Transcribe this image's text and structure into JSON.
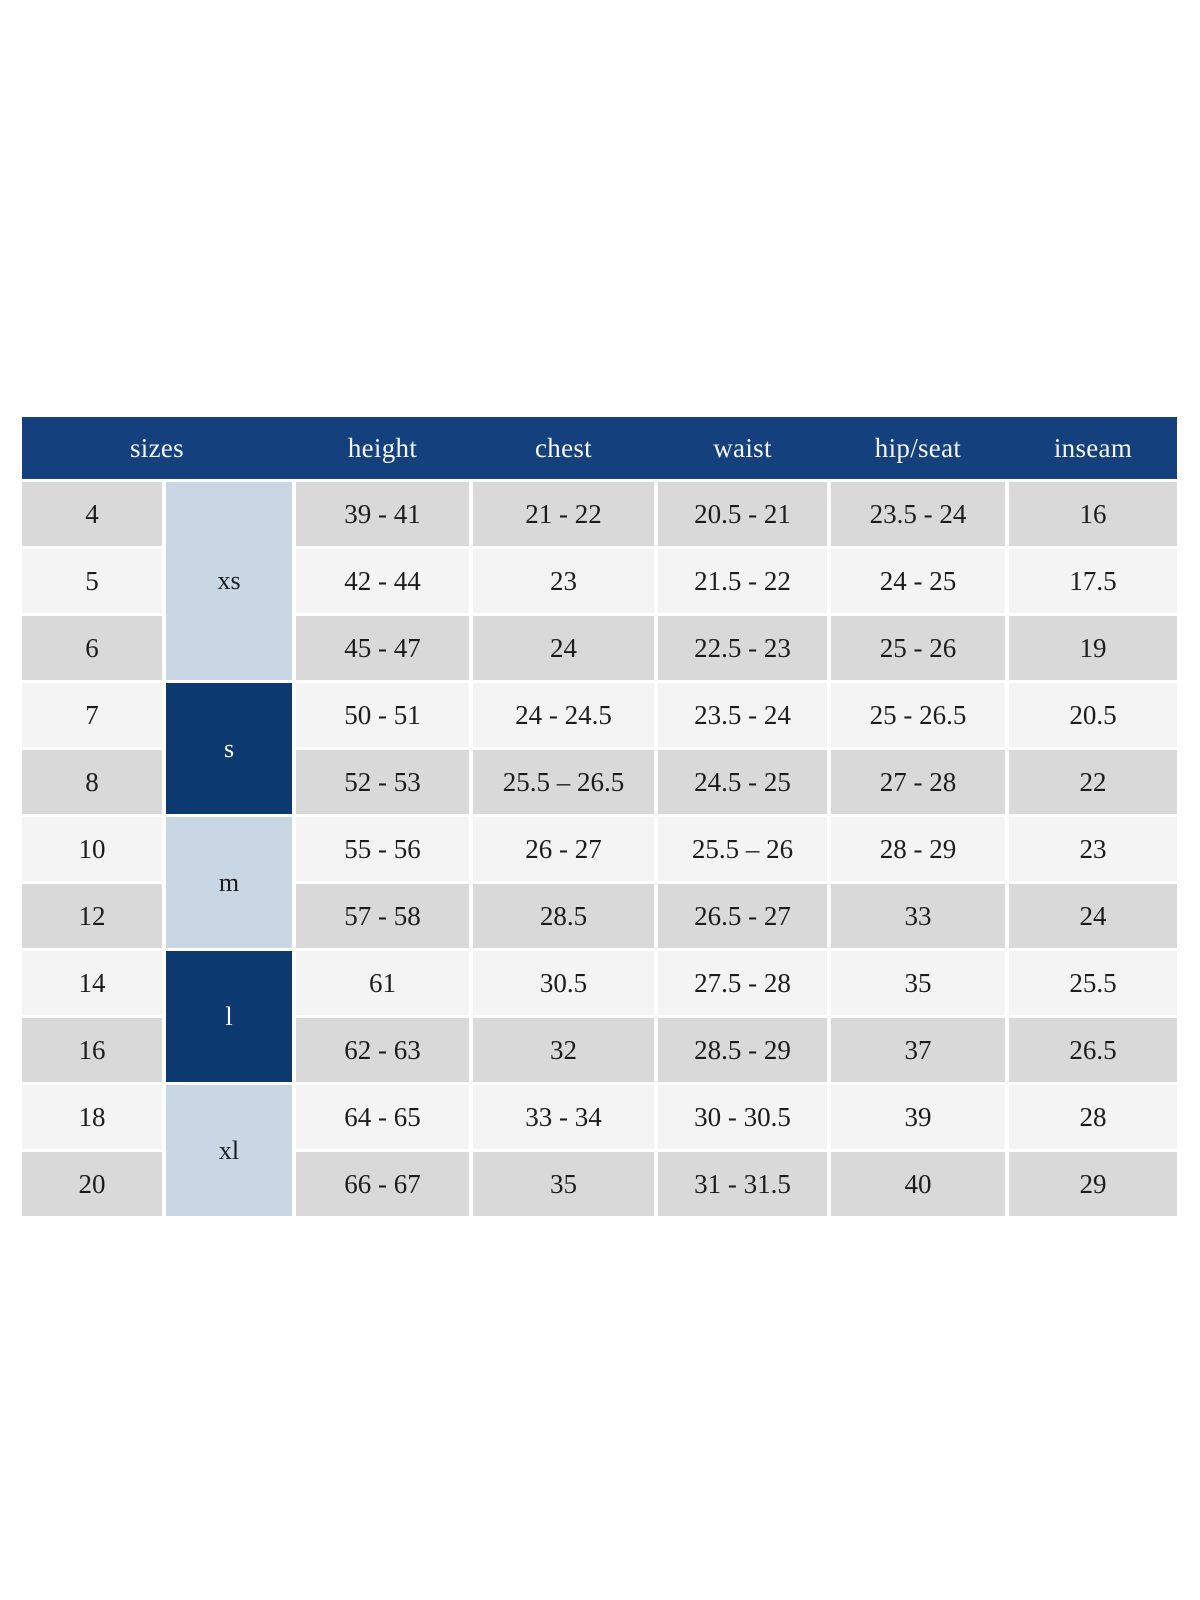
{
  "colors": {
    "header_bg": "#14407d",
    "header_text": "#f5f5f5",
    "group_dark_bg": "#0c3a70",
    "group_dark_text": "#ffffff",
    "group_light_bg": "#c9d6e4",
    "row_gray_bg": "#d9d9d9",
    "row_light_bg": "#f4f4f4",
    "cell_text": "#1c1c1c"
  },
  "chart_data": {
    "type": "table",
    "title": "",
    "columns": [
      "sizes",
      "height",
      "chest",
      "waist",
      "hip/seat",
      "inseam"
    ],
    "layout": {
      "header_sizes_colspan": 2,
      "grid_gaps": true,
      "legend_position": "none"
    },
    "size_groups": [
      {
        "label": "xs",
        "rowspan": 3,
        "variant": "light"
      },
      {
        "label": "s",
        "rowspan": 2,
        "variant": "dark"
      },
      {
        "label": "m",
        "rowspan": 2,
        "variant": "light"
      },
      {
        "label": "l",
        "rowspan": 2,
        "variant": "dark"
      },
      {
        "label": "xl",
        "rowspan": 2,
        "variant": "light"
      }
    ],
    "rows": [
      {
        "size": "4",
        "height": "39 - 41",
        "chest": "21 - 22",
        "waist": "20.5 - 21",
        "hip_seat": "23.5 - 24",
        "inseam": "16"
      },
      {
        "size": "5",
        "height": "42 - 44",
        "chest": "23",
        "waist": "21.5 - 22",
        "hip_seat": "24 - 25",
        "inseam": "17.5"
      },
      {
        "size": "6",
        "height": "45 - 47",
        "chest": "24",
        "waist": "22.5 - 23",
        "hip_seat": "25 - 26",
        "inseam": "19"
      },
      {
        "size": "7",
        "height": "50 - 51",
        "chest": "24 - 24.5",
        "waist": "23.5 - 24",
        "hip_seat": "25 - 26.5",
        "inseam": "20.5"
      },
      {
        "size": "8",
        "height": "52 - 53",
        "chest": "25.5 – 26.5",
        "waist": "24.5 - 25",
        "hip_seat": "27 - 28",
        "inseam": "22"
      },
      {
        "size": "10",
        "height": "55 - 56",
        "chest": "26 - 27",
        "waist": "25.5 – 26",
        "hip_seat": "28 - 29",
        "inseam": "23"
      },
      {
        "size": "12",
        "height": "57 - 58",
        "chest": "28.5",
        "waist": "26.5 - 27",
        "hip_seat": "33",
        "inseam": "24"
      },
      {
        "size": "14",
        "height": "61",
        "chest": "30.5",
        "waist": "27.5 - 28",
        "hip_seat": "35",
        "inseam": "25.5"
      },
      {
        "size": "16",
        "height": "62 - 63",
        "chest": "32",
        "waist": "28.5 - 29",
        "hip_seat": "37",
        "inseam": "26.5"
      },
      {
        "size": "18",
        "height": "64 - 65",
        "chest": "33 - 34",
        "waist": "30 - 30.5",
        "hip_seat": "39",
        "inseam": "28"
      },
      {
        "size": "20",
        "height": "66 - 67",
        "chest": "35",
        "waist": "31 - 31.5",
        "hip_seat": "40",
        "inseam": "29"
      }
    ]
  }
}
